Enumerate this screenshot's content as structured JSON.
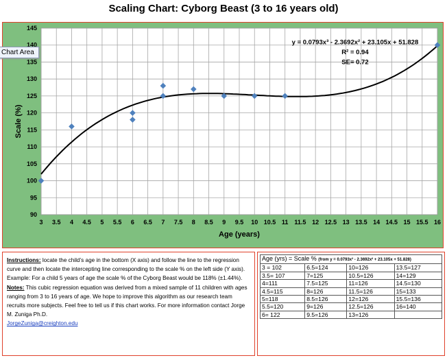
{
  "page_title": "Scaling Chart: Cyborg Beast (3 to 16 years old)",
  "tooltip": "Chart Area",
  "colors": {
    "chart_area_bg": "#7fbf7f",
    "plot_bg": "#ffffff",
    "border": "#e0402a",
    "marker": "#4f81bd",
    "curve": "#000000"
  },
  "chart_data": {
    "type": "scatter",
    "xlabel": "Age (years)",
    "ylabel": "Scale (%)",
    "xlim": [
      3,
      16
    ],
    "ylim": [
      90,
      145
    ],
    "x_ticks": [
      "3",
      "3.5",
      "4",
      "4.5",
      "5",
      "5.5",
      "6",
      "6.5",
      "7",
      "7.5",
      "8",
      "8.5",
      "9",
      "9.5",
      "10",
      "10.5",
      "11",
      "11.5",
      "12",
      "12.5",
      "13",
      "13.5",
      "14",
      "14.5",
      "15",
      "15.5",
      "16"
    ],
    "y_ticks": [
      "90",
      "95",
      "100",
      "105",
      "110",
      "115",
      "120",
      "125",
      "130",
      "135",
      "140",
      "145"
    ],
    "grid": true,
    "series": [
      {
        "points": [
          [
            3,
            100
          ],
          [
            4,
            116
          ],
          [
            6,
            120
          ],
          [
            6,
            118
          ],
          [
            7,
            128
          ],
          [
            7,
            125
          ],
          [
            8,
            127
          ],
          [
            9,
            125
          ],
          [
            10,
            125
          ],
          [
            11,
            125
          ],
          [
            16,
            140
          ]
        ]
      }
    ],
    "trendline": {
      "type": "polynomial",
      "order": 3,
      "coefficients": [
        0.0793,
        -2.3692,
        23.105,
        51.828
      ]
    },
    "annotations": [
      "y = 0.0793x³ - 2.3692x² + 23.105x + 51.828",
      "R² = 0.94",
      "SE= 0.72"
    ]
  },
  "instructions": {
    "instructions_label": "Instructions:",
    "instructions_text": " locate the child’s age in the bottom (X axis) and follow the line to the regression curve and then locate the intercepting line corresponding to the scale % on the left side (Y axis).",
    "example_text": "Example: For a child  5 years of age the scale % of the Cyborg Beast would be 118% (±1.44%).",
    "notes_label": "Notes:",
    "notes_text": " This cubic regression equation was derived from a mixed sample of 11 children with ages ranging from 3 to 16 years of age. We hope to improve this algorithm as our research team recruits more subjects. Feel free to tell us if this chart works. For more information contact Jorge M. Zuniga Ph.D.",
    "email": "JorgeZuniga@creighton.edu"
  },
  "table": {
    "header_main": "Age (yrs) = Scale % ",
    "header_formula": "(from y = 0.0793x³ - 2.3692x² + 23.105x + 51.828)",
    "rows": [
      [
        "3 = 102",
        "6.5=124",
        "10=126",
        "13.5=127"
      ],
      [
        "3.5= 107",
        "7=125",
        "10.5=126",
        "14=129"
      ],
      [
        "4=111",
        "7.5=125",
        "11=126",
        "14.5=130"
      ],
      [
        "4.5=115",
        "8=126",
        "11.5=126",
        "15=133"
      ],
      [
        "5=118",
        "8.5=126",
        "12=126",
        "15.5=136"
      ],
      [
        "5.5=120",
        "9=126",
        "12.5=126",
        "16=140"
      ],
      [
        "6= 122",
        "9.5=126",
        "13=126",
        ""
      ]
    ]
  }
}
